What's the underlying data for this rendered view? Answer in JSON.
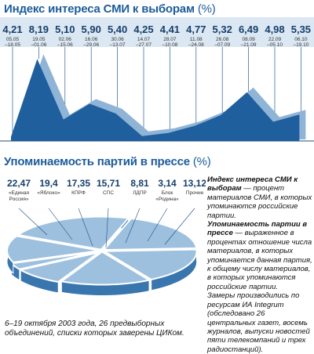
{
  "chart_data": [
    {
      "type": "area",
      "title": "Индекс интереса СМИ к выборам",
      "unit": "(%)",
      "categories": [
        "05.05\n–18.05",
        "19.05\n–01.06",
        "02.06\n–15.06",
        "16.06\n–29.06",
        "30.06\n–13.07",
        "14.07\n–27.07",
        "28.07\n–10.08",
        "11.08\n–24.08",
        "26.08\n–07.09",
        "08.09\n–21.09",
        "22.09\n–05.10",
        "06.10\n–19.10"
      ],
      "values": [
        4.21,
        8.19,
        5.1,
        5.9,
        5.4,
        4.25,
        4.41,
        4.77,
        5.32,
        6.49,
        4.98,
        5.35
      ],
      "value_labels": [
        "4,21",
        "8,19",
        "5,10",
        "5,90",
        "5,40",
        "4,25",
        "4,41",
        "4,77",
        "5,32",
        "6,49",
        "4,98",
        "5,35"
      ],
      "colors": {
        "front": "#1f5f9e",
        "back": "#8fb4d6",
        "title": "#1d5c9a",
        "band": "#dbe7f2"
      }
    },
    {
      "type": "pie",
      "title": "Упоминаемость партий в прессе",
      "unit": "(%)",
      "slices": [
        {
          "label": "«Единая Россия»",
          "value": 22.47,
          "value_label": "22,47"
        },
        {
          "label": "«Яблоко»",
          "value": 19.4,
          "value_label": "19,4"
        },
        {
          "label": "КПРФ",
          "value": 17.35,
          "value_label": "17,35"
        },
        {
          "label": "СПС",
          "value": 15.71,
          "value_label": "15,71"
        },
        {
          "label": "ЛДПР",
          "value": 8.81,
          "value_label": "8,81"
        },
        {
          "label": "Блок «Родина»",
          "value": 3.14,
          "value_label": "3,14"
        },
        {
          "label": "Прочие",
          "value": 13.12,
          "value_label": "13,12"
        }
      ],
      "colors": {
        "top": "#9cc0de",
        "side": "#3a76ae",
        "cut": "#ffffff"
      }
    }
  ],
  "notes": {
    "p1_bold": "Индекс интереса СМИ к выборам",
    "p1_text": " — процент материалов СМИ, в которых упоминаются российские партии.",
    "p2_bold": "Упоминаемость партии в прессе",
    "p2_text": " — выраженное в процентах отношение числа материалов, в которых упоминается данная партия, к общему числу материалов, в которых упоминаются российские партии.",
    "p3_text": "Замеры производились по ресурсам ИА Integrum (обследовано 26 центральных газет, восемь журналов, выпуски новостей пяти телекомпаний и трех радиостанций)."
  },
  "caption": "6–19 октября 2003 года, 26 предвыборных объединений, списки которых заверены ЦИКом."
}
